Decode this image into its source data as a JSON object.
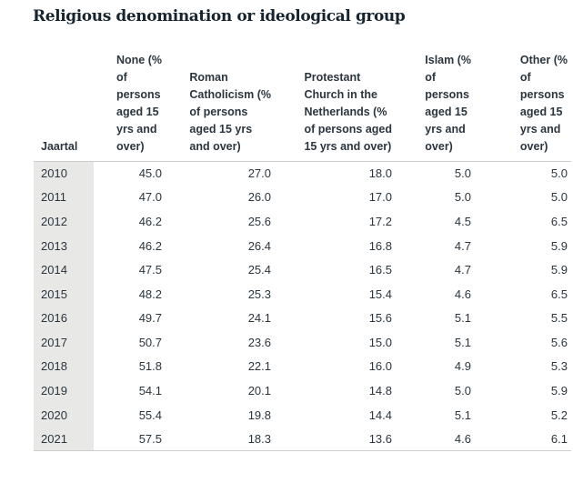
{
  "title": "Religious denomination or ideological group",
  "colors": {
    "text": "#2b353e",
    "title_text": "#15242e",
    "year_column_bg": "#e8e8e7",
    "border": "#cbcdce",
    "background": "#ffffff"
  },
  "table": {
    "row_header_label": "Jaartal",
    "columns": [
      {
        "label": "None (%\nof\npersons\naged 15\nyrs and\nover)"
      },
      {
        "label": "Roman\nCatholicism (%\nof persons\naged 15 yrs\nand over)"
      },
      {
        "label": "Protestant\nChurch in the\nNetherlands (%\nof persons aged\n15 yrs and over)"
      },
      {
        "label": "Islam (%\nof\npersons\naged 15\nyrs and\nover)"
      },
      {
        "label": "Other (%\nof\npersons\naged 15\nyrs and\nover)"
      }
    ],
    "rows": [
      {
        "year": "2010",
        "values": [
          "45.0",
          "27.0",
          "18.0",
          "5.0",
          "5.0"
        ]
      },
      {
        "year": "2011",
        "values": [
          "47.0",
          "26.0",
          "17.0",
          "5.0",
          "5.0"
        ]
      },
      {
        "year": "2012",
        "values": [
          "46.2",
          "25.6",
          "17.2",
          "4.5",
          "6.5"
        ]
      },
      {
        "year": "2013",
        "values": [
          "46.2",
          "26.4",
          "16.8",
          "4.7",
          "5.9"
        ]
      },
      {
        "year": "2014",
        "values": [
          "47.5",
          "25.4",
          "16.5",
          "4.7",
          "5.9"
        ]
      },
      {
        "year": "2015",
        "values": [
          "48.2",
          "25.3",
          "15.4",
          "4.6",
          "6.5"
        ]
      },
      {
        "year": "2016",
        "values": [
          "49.7",
          "24.1",
          "15.6",
          "5.1",
          "5.5"
        ]
      },
      {
        "year": "2017",
        "values": [
          "50.7",
          "23.6",
          "15.0",
          "5.1",
          "5.6"
        ]
      },
      {
        "year": "2018",
        "values": [
          "51.8",
          "22.1",
          "16.0",
          "4.9",
          "5.3"
        ]
      },
      {
        "year": "2019",
        "values": [
          "54.1",
          "20.1",
          "14.8",
          "5.0",
          "5.9"
        ]
      },
      {
        "year": "2020",
        "values": [
          "55.4",
          "19.8",
          "14.4",
          "5.1",
          "5.2"
        ]
      },
      {
        "year": "2021",
        "values": [
          "57.5",
          "18.3",
          "13.6",
          "4.6",
          "6.1"
        ]
      }
    ]
  },
  "chart_data": {
    "type": "table",
    "title": "Religious denomination or ideological group",
    "row_header": "Jaartal",
    "categories": [
      2010,
      2011,
      2012,
      2013,
      2014,
      2015,
      2016,
      2017,
      2018,
      2019,
      2020,
      2021
    ],
    "series": [
      {
        "name": "None (% of persons aged 15 yrs and over)",
        "values": [
          45.0,
          47.0,
          46.2,
          46.2,
          47.5,
          48.2,
          49.7,
          50.7,
          51.8,
          54.1,
          55.4,
          57.5
        ]
      },
      {
        "name": "Roman Catholicism (% of persons aged 15 yrs and over)",
        "values": [
          27.0,
          26.0,
          25.6,
          26.4,
          25.4,
          25.3,
          24.1,
          23.6,
          22.1,
          20.1,
          19.8,
          18.3
        ]
      },
      {
        "name": "Protestant Church in the Netherlands (% of persons aged 15 yrs and over)",
        "values": [
          18.0,
          17.0,
          17.2,
          16.8,
          16.5,
          15.4,
          15.6,
          15.0,
          16.0,
          14.8,
          14.4,
          13.6
        ]
      },
      {
        "name": "Islam (% of persons aged 15 yrs and over)",
        "values": [
          5.0,
          5.0,
          4.5,
          4.7,
          4.7,
          4.6,
          5.1,
          5.1,
          4.9,
          5.0,
          5.1,
          4.6
        ]
      },
      {
        "name": "Other (% of persons aged 15 yrs and over)",
        "values": [
          5.0,
          5.0,
          6.5,
          5.9,
          5.9,
          6.5,
          5.5,
          5.6,
          5.3,
          5.9,
          5.2,
          6.1
        ]
      }
    ]
  }
}
